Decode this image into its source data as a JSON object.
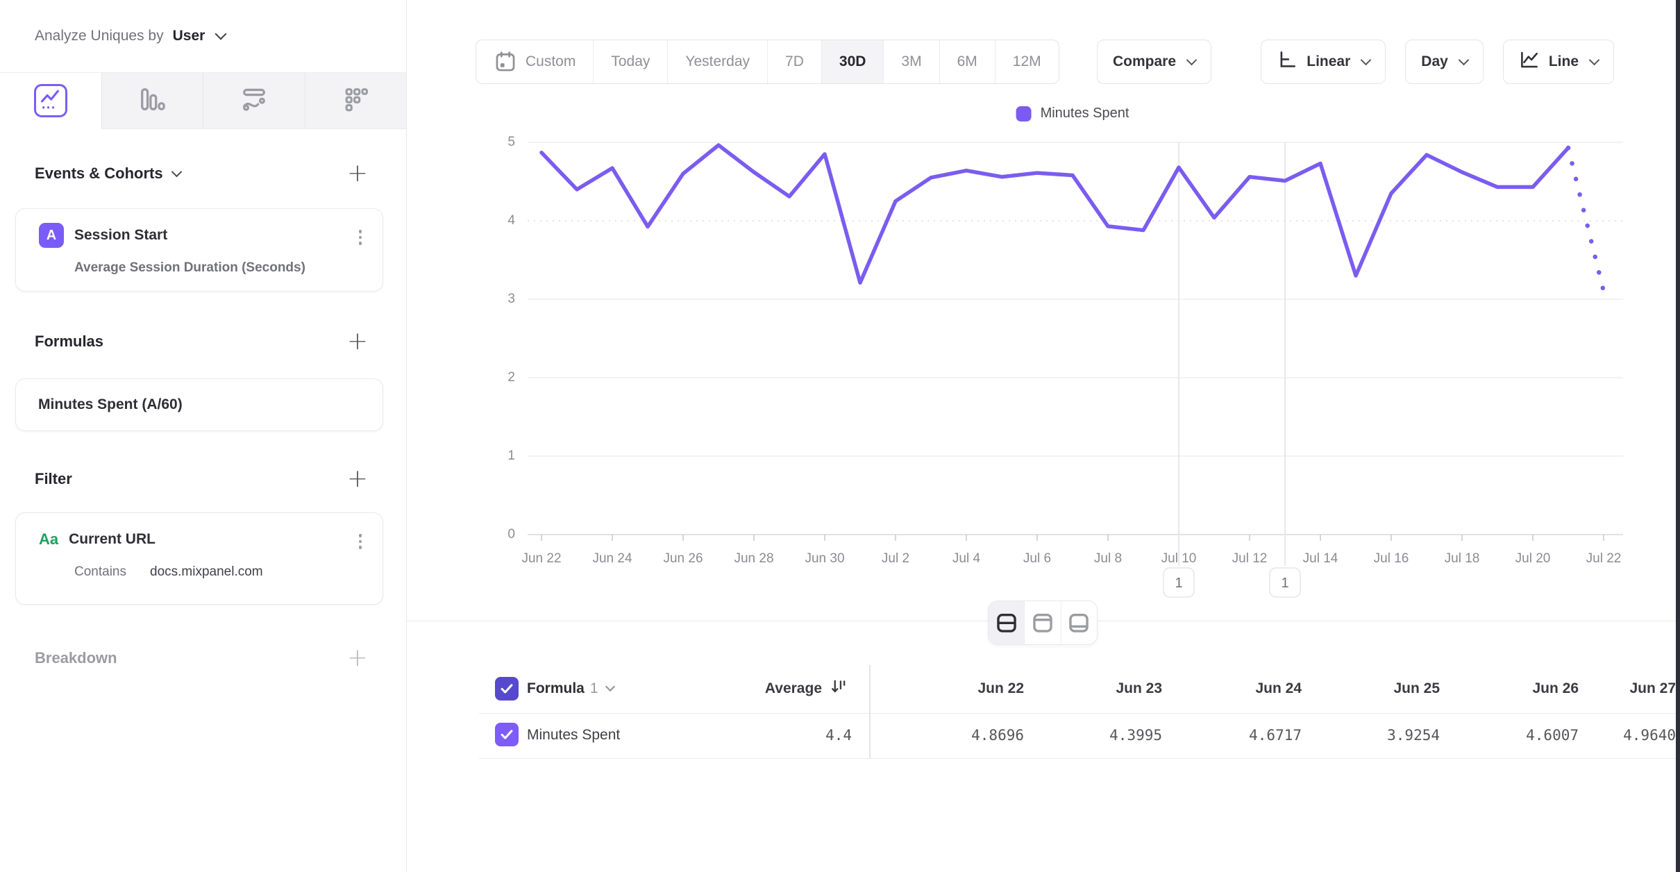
{
  "sidebar": {
    "analyze_label": "Analyze Uniques by",
    "analyze_value": "User",
    "tabs": [
      {
        "icon": "line-chart-icon",
        "active": true
      },
      {
        "icon": "bar-chart-icon",
        "active": false
      },
      {
        "icon": "flow-chart-icon",
        "active": false
      },
      {
        "icon": "grid-metric-icon",
        "active": false
      }
    ],
    "events_section": {
      "title": "Events & Cohorts",
      "card": {
        "badge": "A",
        "title": "Session Start",
        "subtitle": "Average Session Duration (Seconds)"
      }
    },
    "formulas_section": {
      "title": "Formulas",
      "card": {
        "title": "Minutes Spent (A/60)"
      }
    },
    "filter_section": {
      "title": "Filter",
      "card": {
        "badge": "Aa",
        "title": "Current URL",
        "operator": "Contains",
        "value": "docs.mixpanel.com"
      }
    },
    "breakdown_section": {
      "title": "Breakdown"
    }
  },
  "toolbar": {
    "date_ranges": [
      "Custom",
      "Today",
      "Yesterday",
      "7D",
      "30D",
      "3M",
      "6M",
      "12M"
    ],
    "active_range": "30D",
    "compare_label": "Compare",
    "scale_label": "Linear",
    "interval_label": "Day",
    "chart_type_label": "Line"
  },
  "chart_data": {
    "type": "line",
    "title": "",
    "xlabel": "",
    "ylabel": "",
    "ylim": [
      0,
      5
    ],
    "yticks": [
      0,
      1,
      2,
      3,
      4,
      5
    ],
    "grid": "horizontal, dashed reference line at 4",
    "legend": {
      "label": "Minutes Spent",
      "position": "top-center"
    },
    "x": [
      "Jun 22",
      "Jun 23",
      "Jun 24",
      "Jun 25",
      "Jun 26",
      "Jun 27",
      "Jun 28",
      "Jun 29",
      "Jun 30",
      "Jul 1",
      "Jul 2",
      "Jul 3",
      "Jul 4",
      "Jul 5",
      "Jul 6",
      "Jul 7",
      "Jul 8",
      "Jul 9",
      "Jul 10",
      "Jul 11",
      "Jul 12",
      "Jul 13",
      "Jul 14",
      "Jul 15",
      "Jul 16",
      "Jul 17",
      "Jul 18",
      "Jul 19",
      "Jul 20",
      "Jul 21",
      "Jul 22"
    ],
    "x_tick_every": 2,
    "series": [
      {
        "name": "Minutes Spent",
        "color": "#7B5CF0",
        "values": [
          4.8696,
          4.3995,
          4.6717,
          3.9254,
          4.6007,
          4.964,
          4.62,
          4.31,
          4.85,
          3.21,
          4.25,
          4.55,
          4.64,
          4.56,
          4.61,
          4.58,
          3.93,
          3.88,
          4.68,
          4.04,
          4.56,
          4.51,
          4.73,
          3.3,
          4.35,
          4.84,
          4.62,
          4.43,
          4.43,
          4.93,
          3.1
        ]
      }
    ],
    "incomplete_last_point_dotted": true,
    "annotations": [
      {
        "label": "1",
        "x": "Jul 10"
      },
      {
        "label": "1",
        "x": "Jul 13"
      }
    ]
  },
  "layout_toggle": {
    "options": [
      "split-view",
      "chart-only",
      "table-only"
    ],
    "active": "split-view"
  },
  "table": {
    "group_label": "Formula",
    "group_index": "1",
    "average_label": "Average",
    "columns": [
      "Jun 22",
      "Jun 23",
      "Jun 24",
      "Jun 25",
      "Jun 26",
      "Jun 27"
    ],
    "row": {
      "name": "Minutes Spent",
      "average": "4.4",
      "values": [
        "4.8696",
        "4.3995",
        "4.6717",
        "3.9254",
        "4.6007",
        "4.9640"
      ]
    }
  },
  "colors": {
    "accent": "#7B5CF0",
    "checkbox_header": "#5649CE",
    "checkbox_row": "#7D5CFA",
    "event_badge": "#7A5CF8",
    "filter_badge_green": "#1FA05F"
  }
}
